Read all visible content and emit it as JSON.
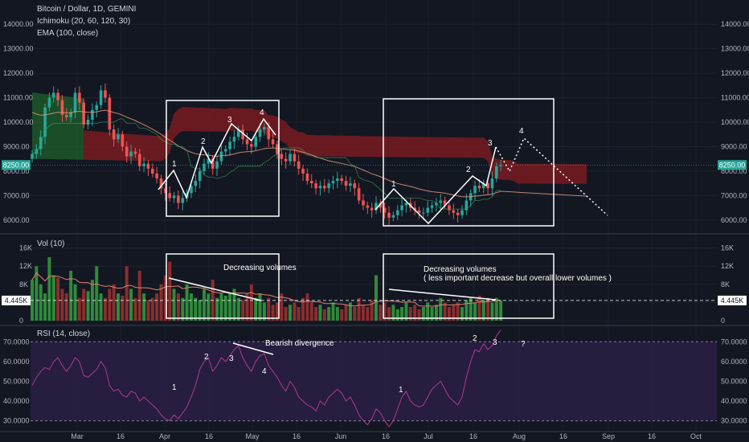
{
  "header": {
    "symbol_line": "Bitcoin / Dollar, 1D, GEMINI",
    "ichimoku": "Ichimoku (20, 60, 120, 30)",
    "ema": "EMA (100, close)",
    "vol_title": "Vol (10)",
    "rsi_title": "RSI (14, close)"
  },
  "colors": {
    "background": "#131722",
    "up": "#26a69a",
    "down": "#ef5350",
    "cloud_bear": "#7f1b22",
    "cloud_bull": "#1e5c2a",
    "ema": "#f0a080",
    "rsi_line": "#b03a8e",
    "rsi_band": "#2a1f44",
    "annotation": "#ffffff"
  },
  "chart_data": [
    {
      "type": "candlestick",
      "panel": "price",
      "y_ticks": [
        "14000.00",
        "13000.00",
        "12000.00",
        "11000.00",
        "10000.00",
        "9000.00",
        "8000.00",
        "7000.00",
        "6000.00"
      ],
      "ylim": [
        5600,
        14400
      ],
      "last_price_label": "8250.00",
      "last_price": 8250,
      "series": [
        {
          "name": "BTCUSD",
          "values": [
            8700,
            8900,
            9400,
            10600,
            11000,
            11200,
            10900,
            10300,
            10200,
            10400,
            11200,
            10800,
            9900,
            10100,
            10500,
            10700,
            11300,
            11000,
            9700,
            9300,
            9500,
            9000,
            8600,
            8800,
            8700,
            8200,
            8300,
            8100,
            7900,
            7700,
            7300,
            7100,
            6900,
            7000,
            6700,
            6900,
            7100,
            7400,
            7600,
            8000,
            8300,
            8500,
            8100,
            8400,
            8800,
            8900,
            9200,
            9400,
            9700,
            9300,
            9100,
            9000,
            9400,
            9700,
            9800,
            9300,
            9100,
            8700,
            8500,
            8400,
            8700,
            8400,
            8100,
            7900,
            7600,
            7500,
            7300,
            7400,
            7300,
            7500,
            7600,
            7700,
            7600,
            7400,
            7500,
            7300,
            6800,
            6600,
            6500,
            6400,
            6700,
            6500,
            6300,
            6100,
            6200,
            6400,
            6600,
            6700,
            6500,
            6400,
            6300,
            6300,
            6500,
            6600,
            6700,
            6800,
            6600,
            6400,
            6300,
            6200,
            6400,
            6800,
            7100,
            7400,
            7300,
            7500,
            7300,
            7700,
            8200,
            8250
          ]
        }
      ]
    },
    {
      "type": "bar",
      "panel": "volume",
      "y_ticks": [
        "16K",
        "12K",
        "8K",
        "4K",
        "0"
      ],
      "ylim": [
        0,
        17000
      ],
      "last_volume_label": "4.445K",
      "last_volume": 4445,
      "values": [
        9000,
        12000,
        8000,
        6000,
        14000,
        10000,
        9500,
        7000,
        6000,
        11000,
        8000,
        5000,
        7000,
        6500,
        9000,
        12000,
        6000,
        5000,
        7000,
        8000,
        6000,
        5500,
        12000,
        7000,
        5000,
        11000,
        6000,
        4500,
        5000,
        6000,
        8000,
        10000,
        13000,
        7000,
        6000,
        5000,
        8000,
        6000,
        5000,
        4500,
        7000,
        6000,
        9000,
        5000,
        6000,
        5500,
        6000,
        7000,
        5000,
        4500,
        6000,
        8000,
        5000,
        6000,
        4000,
        5000,
        3500,
        4000,
        6000,
        3000,
        3500,
        4000,
        3000,
        5000,
        6000,
        4000,
        3000,
        3500,
        2500,
        3000,
        4000,
        3000,
        2500,
        3500,
        4000,
        3000,
        5000,
        3500,
        3000,
        4500,
        10000,
        3500,
        4000,
        3000,
        3500,
        2500,
        3000,
        4000,
        3000,
        3500,
        2500,
        3000,
        4000,
        3000,
        3500,
        5000,
        4000,
        3000,
        3500,
        4000,
        3000,
        4500,
        5000,
        4000,
        5500,
        4500,
        5000,
        4000,
        5000,
        4445
      ]
    },
    {
      "type": "line",
      "panel": "rsi",
      "y_ticks": [
        "70.0000",
        "60.0000",
        "50.0000",
        "40.0000",
        "30.0000"
      ],
      "ylim": [
        27,
        75
      ],
      "band": [
        30,
        70
      ],
      "values": [
        48,
        52,
        55,
        57,
        56,
        60,
        62,
        58,
        55,
        58,
        62,
        60,
        53,
        52,
        54,
        56,
        60,
        57,
        48,
        45,
        46,
        43,
        42,
        45,
        44,
        40,
        42,
        40,
        38,
        36,
        33,
        31,
        30,
        33,
        31,
        34,
        37,
        42,
        48,
        56,
        60,
        62,
        55,
        58,
        62,
        60,
        63,
        66,
        68,
        62,
        58,
        55,
        60,
        63,
        64,
        58,
        55,
        52,
        48,
        45,
        50,
        47,
        42,
        40,
        38,
        37,
        35,
        40,
        38,
        42,
        44,
        46,
        44,
        40,
        42,
        38,
        33,
        30,
        28,
        31,
        36,
        34,
        30,
        27,
        30,
        36,
        42,
        45,
        40,
        38,
        37,
        38,
        42,
        46,
        48,
        50,
        46,
        42,
        40,
        38,
        42,
        52,
        60,
        66,
        65,
        69,
        66,
        68,
        73,
        76
      ]
    }
  ],
  "x_ticks": [
    "Mar",
    "16",
    "Apr",
    "16",
    "May",
    "16",
    "Jun",
    "16",
    "Jul",
    "16",
    "Aug",
    "16",
    "Sep",
    "16",
    "Oct"
  ],
  "annotations": {
    "vol_text_1": "Decreasing volumes",
    "vol_text_2a": "Decreasing volumes",
    "vol_text_2b": "( less important decrease but overall lower volumes )",
    "rsi_text": "Bearish divergence",
    "wave_labels_1": [
      "1",
      "2",
      "3",
      "4"
    ],
    "wave_labels_2": [
      "1",
      "2",
      "3",
      "4"
    ],
    "rsi_labels_1": [
      "1",
      "2",
      "3",
      "4"
    ],
    "rsi_labels_2": [
      "1",
      "2",
      "3",
      "?"
    ]
  }
}
